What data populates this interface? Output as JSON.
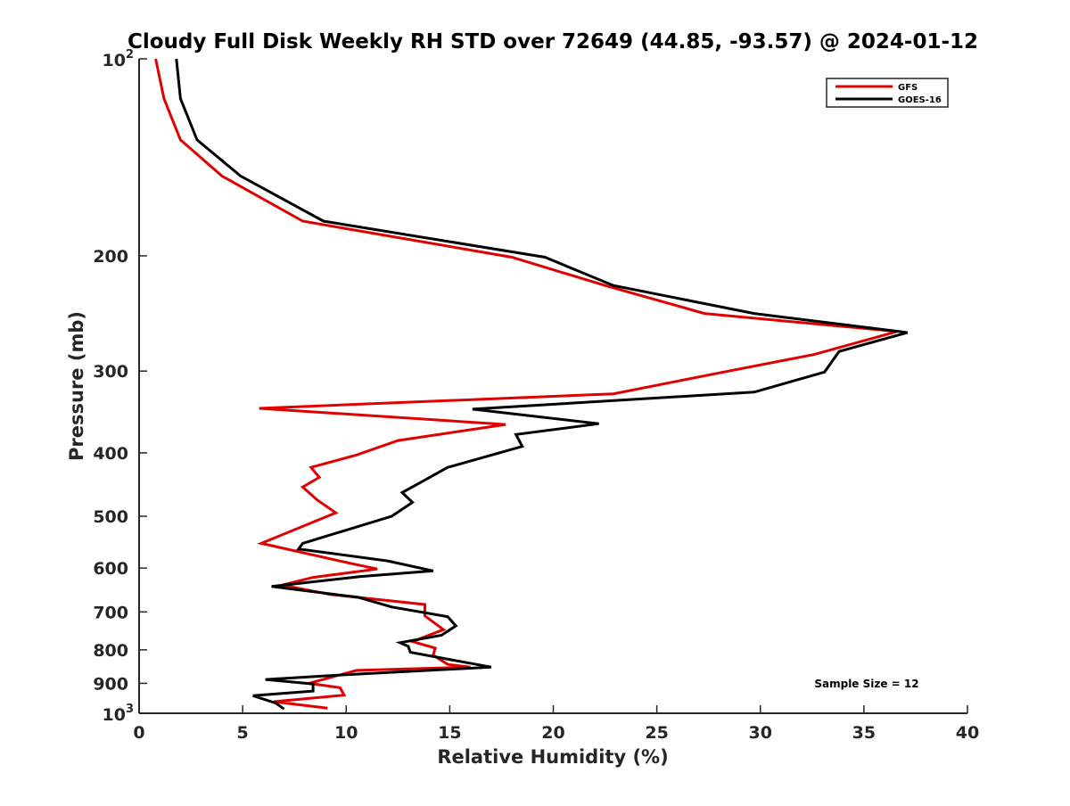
{
  "chart_data": {
    "type": "line",
    "title": "Cloudy Full Disk Weekly RH STD over 72649 (44.85, -93.57) @ 2024-01-12",
    "xlabel": "Relative Humidity (%)",
    "ylabel": "Pressure (mb)",
    "xlim": [
      0,
      40
    ],
    "ylim": [
      100,
      1000
    ],
    "y_scale": "log",
    "y_reversed": true,
    "grid": false,
    "legend_position": "top-right",
    "annotation": "Sample Size = 12",
    "x_ticks": [
      0,
      5,
      10,
      15,
      20,
      25,
      30,
      35,
      40
    ],
    "x_tick_labels": [
      "0",
      "5",
      "10",
      "15",
      "20",
      "25",
      "30",
      "35",
      "40"
    ],
    "y_ticks": [
      {
        "value": 100,
        "base": "10",
        "exp": "2",
        "label": ""
      },
      {
        "value": 200,
        "label": "200"
      },
      {
        "value": 300,
        "label": "300"
      },
      {
        "value": 400,
        "label": "400"
      },
      {
        "value": 500,
        "label": "500"
      },
      {
        "value": 600,
        "label": "600"
      },
      {
        "value": 700,
        "label": "700"
      },
      {
        "value": 800,
        "label": "800"
      },
      {
        "value": 900,
        "label": "900"
      },
      {
        "value": 1000,
        "base": "10",
        "exp": "3",
        "label": ""
      }
    ],
    "series": [
      {
        "name": "GFS",
        "color": "#e00000",
        "points": [
          [
            0.8,
            100
          ],
          [
            1.2,
            115
          ],
          [
            2.0,
            133
          ],
          [
            4.0,
            151
          ],
          [
            7.9,
            177
          ],
          [
            18.0,
            201
          ],
          [
            22.5,
            222
          ],
          [
            27.3,
            245
          ],
          [
            36.6,
            261
          ],
          [
            32.6,
            283
          ],
          [
            28.0,
            302
          ],
          [
            22.9,
            325
          ],
          [
            5.8,
            342
          ],
          [
            17.7,
            362
          ],
          [
            12.5,
            383
          ],
          [
            10.5,
            403
          ],
          [
            8.3,
            421
          ],
          [
            8.7,
            436
          ],
          [
            7.9,
            451
          ],
          [
            8.6,
            472
          ],
          [
            9.5,
            494
          ],
          [
            5.9,
            550
          ],
          [
            10.2,
            590
          ],
          [
            11.5,
            602
          ],
          [
            8.4,
            620
          ],
          [
            6.9,
            637
          ],
          [
            9.2,
            658
          ],
          [
            13.8,
            682
          ],
          [
            13.8,
            710
          ],
          [
            14.7,
            745
          ],
          [
            13.2,
            777
          ],
          [
            14.3,
            795
          ],
          [
            14.2,
            815
          ],
          [
            14.9,
            842
          ],
          [
            16.0,
            850
          ],
          [
            10.5,
            860
          ],
          [
            8.2,
            900
          ],
          [
            9.7,
            914
          ],
          [
            9.9,
            938
          ],
          [
            6.5,
            960
          ],
          [
            9.1,
            982
          ]
        ]
      },
      {
        "name": "GOES-16",
        "color": "#000000",
        "points": [
          [
            1.8,
            100
          ],
          [
            2.0,
            115
          ],
          [
            2.8,
            133
          ],
          [
            4.9,
            151
          ],
          [
            8.9,
            177
          ],
          [
            19.6,
            201
          ],
          [
            22.9,
            222
          ],
          [
            29.7,
            245
          ],
          [
            37.1,
            262
          ],
          [
            33.8,
            280
          ],
          [
            33.1,
            301
          ],
          [
            29.7,
            323
          ],
          [
            16.1,
            343
          ],
          [
            22.2,
            361
          ],
          [
            18.2,
            375
          ],
          [
            18.5,
            391
          ],
          [
            14.9,
            421
          ],
          [
            13.7,
            442
          ],
          [
            12.7,
            460
          ],
          [
            13.2,
            476
          ],
          [
            12.2,
            500
          ],
          [
            7.9,
            550
          ],
          [
            7.7,
            561
          ],
          [
            12.0,
            585
          ],
          [
            14.2,
            606
          ],
          [
            10.7,
            618
          ],
          [
            6.4,
            640
          ],
          [
            10.6,
            665
          ],
          [
            12.2,
            688
          ],
          [
            14.9,
            712
          ],
          [
            15.3,
            735
          ],
          [
            14.6,
            760
          ],
          [
            12.6,
            780
          ],
          [
            13.0,
            790
          ],
          [
            13.1,
            807
          ],
          [
            17.0,
            850
          ],
          [
            9.5,
            875
          ],
          [
            6.1,
            888
          ],
          [
            8.4,
            902
          ],
          [
            8.4,
            925
          ],
          [
            5.5,
            940
          ],
          [
            6.6,
            965
          ],
          [
            7.0,
            985
          ]
        ]
      }
    ]
  }
}
